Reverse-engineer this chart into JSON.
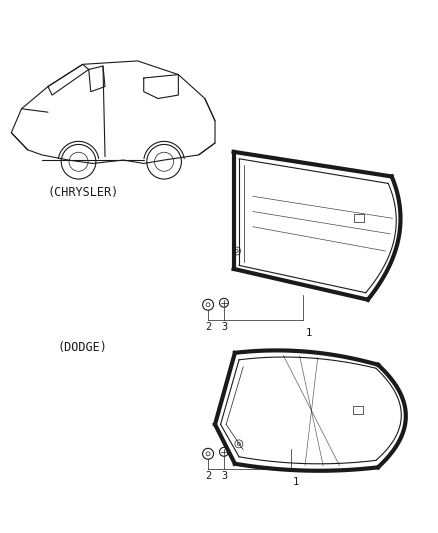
{
  "bg_color": "#ffffff",
  "line_color": "#1a1a1a",
  "chrysler_label": "(CHRYSLER)",
  "dodge_label": "(DODGE)",
  "label1": "1",
  "label2": "2",
  "label3": "3",
  "font_size_labels": 7.5,
  "font_size_part": 8.5,
  "fig_w": 4.38,
  "fig_h": 5.33,
  "dpi": 100
}
